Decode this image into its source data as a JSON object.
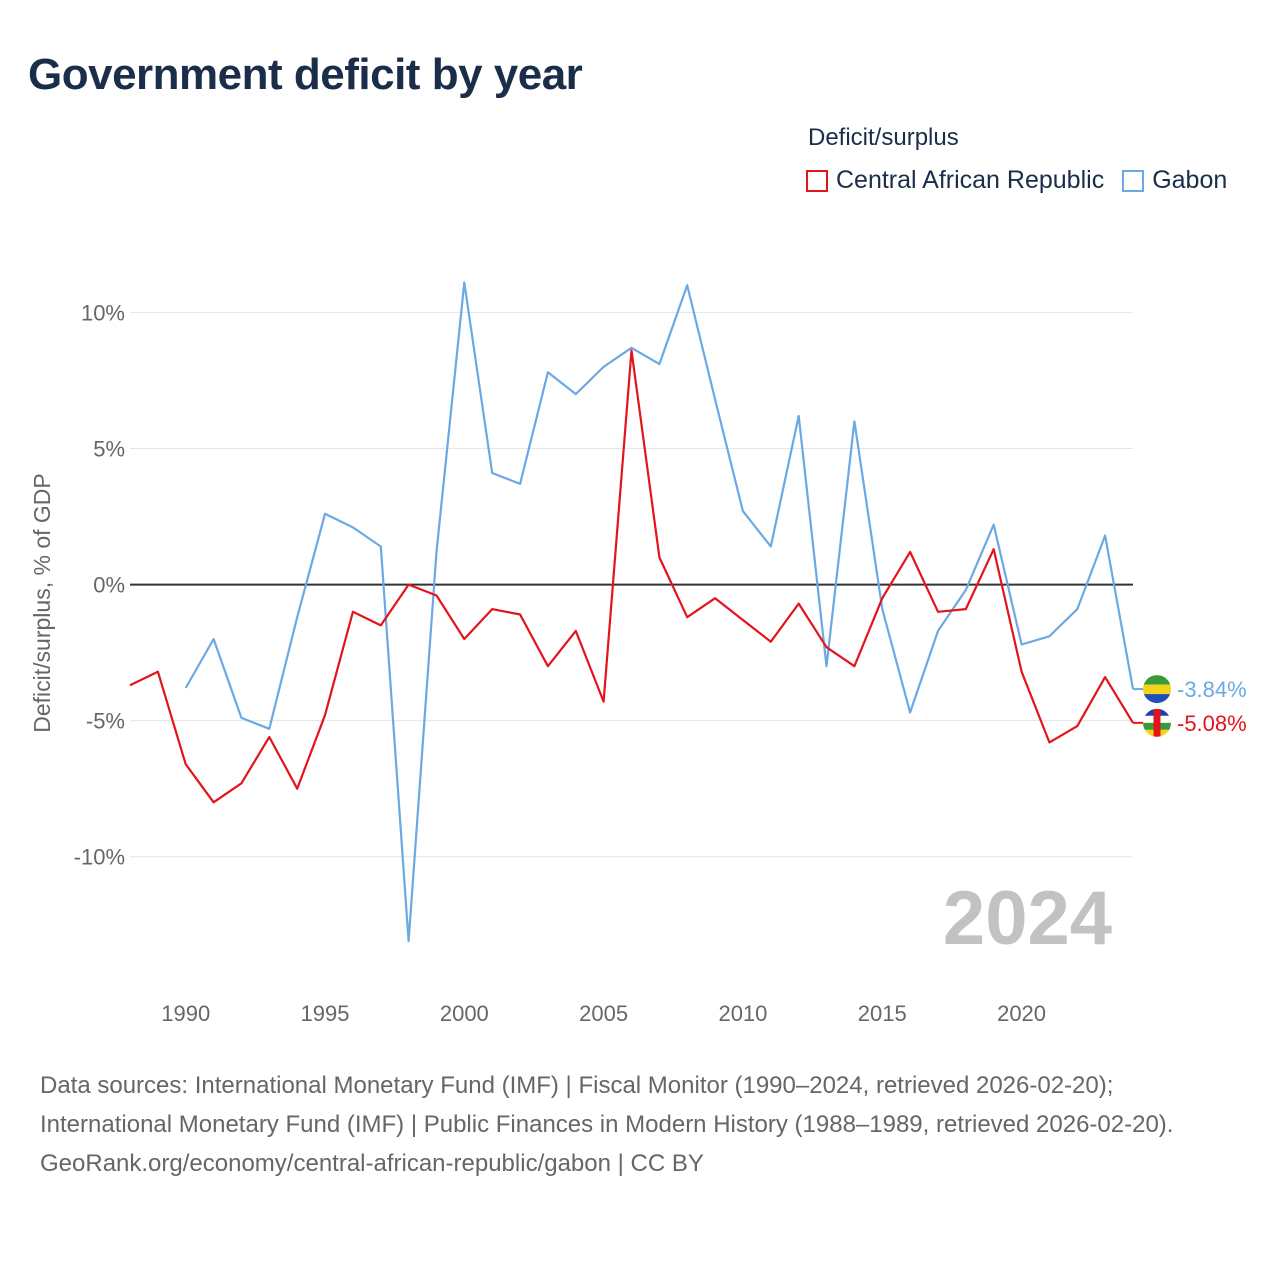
{
  "title": "Government deficit by year",
  "legend_title": "Deficit/surplus",
  "colors": {
    "car": "#e3141b",
    "gabon": "#6aa9e3",
    "zero": "#333333",
    "grid": "#e6e6e6",
    "title": "#1a2e4a"
  },
  "footer": {
    "sources": "Data sources: International Monetary Fund (IMF) | Fiscal Monitor (1990–2024, retrieved 2026-02-20); International Monetary Fund (IMF) | Public Finances in Modern History (1988–1989, retrieved 2026-02-20).",
    "attribution": "GeoRank.org/economy/central-african-republic/gabon | CC BY"
  },
  "chart_data": {
    "type": "line",
    "title": "Government deficit by year",
    "ylabel": "Deficit/surplus, % of GDP",
    "xlabel": "",
    "xlim": [
      1988,
      2024
    ],
    "ylim": [
      -13.5,
      12
    ],
    "x_ticks": [
      1990,
      1995,
      2000,
      2005,
      2010,
      2015,
      2020
    ],
    "y_ticks": [
      10,
      5,
      0,
      -5,
      -10
    ],
    "y_tick_labels": [
      "10%",
      "5%",
      "0%",
      "-5%",
      "-10%"
    ],
    "year_watermark": "2024",
    "series": [
      {
        "name": "Central African Republic",
        "color": "#e3141b",
        "end_label": "-5.08%",
        "x": [
          1988,
          1989,
          1990,
          1991,
          1992,
          1993,
          1994,
          1995,
          1996,
          1997,
          1998,
          1999,
          2000,
          2001,
          2002,
          2003,
          2004,
          2005,
          2006,
          2007,
          2008,
          2009,
          2010,
          2011,
          2012,
          2013,
          2014,
          2015,
          2016,
          2017,
          2018,
          2019,
          2020,
          2021,
          2022,
          2023,
          2024
        ],
        "values": [
          -3.7,
          -3.2,
          -6.6,
          -8.0,
          -7.3,
          -5.6,
          -7.5,
          -4.8,
          -1.0,
          -1.5,
          0.0,
          -0.4,
          -2.0,
          -0.9,
          -1.1,
          -3.0,
          -1.7,
          -4.3,
          8.6,
          1.0,
          -1.2,
          -0.5,
          -1.3,
          -2.1,
          -0.7,
          -2.3,
          -3.0,
          -0.5,
          1.2,
          -1.0,
          -0.9,
          1.3,
          -3.2,
          -5.8,
          -5.2,
          -3.4,
          -5.08
        ]
      },
      {
        "name": "Gabon",
        "color": "#6aa9e3",
        "end_label": "-3.84%",
        "x": [
          1990,
          1991,
          1992,
          1993,
          1994,
          1995,
          1996,
          1997,
          1998,
          1999,
          2000,
          2001,
          2002,
          2003,
          2004,
          2005,
          2006,
          2007,
          2008,
          2009,
          2010,
          2011,
          2012,
          2013,
          2014,
          2015,
          2016,
          2017,
          2018,
          2019,
          2020,
          2021,
          2022,
          2023,
          2024
        ],
        "values": [
          -3.8,
          -2.0,
          -4.9,
          -5.3,
          -1.2,
          2.6,
          2.1,
          1.4,
          -13.1,
          1.2,
          11.1,
          4.1,
          3.7,
          7.8,
          7.0,
          8.0,
          8.7,
          8.1,
          11.0,
          6.8,
          2.7,
          1.4,
          6.2,
          -3.0,
          6.0,
          -0.9,
          -4.7,
          -1.7,
          -0.2,
          2.2,
          -2.2,
          -1.9,
          -0.9,
          1.8,
          -3.84
        ]
      }
    ]
  }
}
